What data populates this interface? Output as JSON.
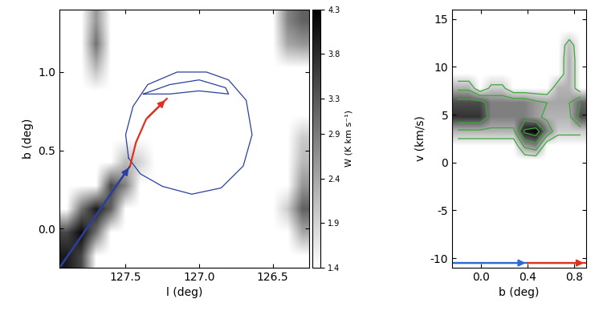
{
  "chart_data": [
    {
      "type": "heatmap",
      "xlabel": "l (deg)",
      "ylabel": "b (deg)",
      "xlim": [
        127.95,
        126.25
      ],
      "ylim": [
        -0.25,
        1.4
      ],
      "xticks": [
        127.5,
        127.0,
        126.5
      ],
      "yticks": [
        0.0,
        0.5,
        1.0
      ],
      "colorbar_label": "W (K km s⁻¹)",
      "colorbar_range": [
        1.4,
        4.3
      ],
      "colorbar_ticks": [
        1.4,
        1.9,
        2.4,
        2.9,
        3.3,
        3.8,
        4.3
      ],
      "cells": [
        [
          4.0,
          3.5,
          1.4,
          1.4,
          1.4,
          1.4,
          1.4,
          1.4,
          1.4,
          1.4,
          1.4,
          1.4,
          1.4,
          1.4,
          1.4,
          1.4,
          1.4
        ],
        [
          3.5,
          4.2,
          3.0,
          1.4,
          1.4,
          1.4,
          1.4,
          1.4,
          1.4,
          1.4,
          1.4,
          1.4,
          1.4,
          1.4,
          1.4,
          1.4,
          2.4
        ],
        [
          1.4,
          3.0,
          4.0,
          3.2,
          1.4,
          1.4,
          1.4,
          1.4,
          1.4,
          1.4,
          1.4,
          1.4,
          1.4,
          1.4,
          1.4,
          2.0,
          3.2
        ],
        [
          1.4,
          1.4,
          1.4,
          3.5,
          2.8,
          1.4,
          1.4,
          1.4,
          1.4,
          1.4,
          1.4,
          1.4,
          1.4,
          1.4,
          1.4,
          1.4,
          2.6
        ],
        [
          1.4,
          1.4,
          1.4,
          1.4,
          2.2,
          1.9,
          1.4,
          1.4,
          1.4,
          1.4,
          1.4,
          1.4,
          1.4,
          1.4,
          1.4,
          1.4,
          2.2
        ],
        [
          1.4,
          1.4,
          1.4,
          1.4,
          1.4,
          1.4,
          1.4,
          1.4,
          1.4,
          1.4,
          1.4,
          1.4,
          1.4,
          1.4,
          1.4,
          1.4,
          2.0
        ],
        [
          1.4,
          1.4,
          1.4,
          1.4,
          1.4,
          1.4,
          1.4,
          1.4,
          1.4,
          1.4,
          1.4,
          1.4,
          1.4,
          1.4,
          1.4,
          1.4,
          1.4
        ],
        [
          1.4,
          1.4,
          1.4,
          1.4,
          1.4,
          1.4,
          1.4,
          1.4,
          1.4,
          1.4,
          1.4,
          1.4,
          1.4,
          1.4,
          1.4,
          1.4,
          1.4
        ],
        [
          1.4,
          1.4,
          2.2,
          1.4,
          1.4,
          1.4,
          1.4,
          1.4,
          1.4,
          1.4,
          1.4,
          1.4,
          1.4,
          1.4,
          1.4,
          1.4,
          1.4
        ],
        [
          1.4,
          1.4,
          3.0,
          1.4,
          1.4,
          1.4,
          1.4,
          1.4,
          1.4,
          1.4,
          1.4,
          1.4,
          1.4,
          1.4,
          1.4,
          2.4,
          2.6
        ],
        [
          1.4,
          1.4,
          2.6,
          1.4,
          1.4,
          1.4,
          1.4,
          1.4,
          1.4,
          1.4,
          1.4,
          1.4,
          1.4,
          1.4,
          1.4,
          2.8,
          3.2
        ]
      ],
      "contours": [
        {
          "color": "#2b3f9e",
          "points": [
            [
              127.48,
              0.45
            ],
            [
              127.5,
              0.6
            ],
            [
              127.45,
              0.78
            ],
            [
              127.35,
              0.92
            ],
            [
              127.15,
              1.0
            ],
            [
              126.95,
              1.0
            ],
            [
              126.8,
              0.95
            ],
            [
              126.68,
              0.82
            ],
            [
              126.64,
              0.6
            ],
            [
              126.7,
              0.4
            ],
            [
              126.85,
              0.26
            ],
            [
              127.05,
              0.22
            ],
            [
              127.25,
              0.27
            ],
            [
              127.4,
              0.35
            ],
            [
              127.48,
              0.45
            ]
          ]
        },
        {
          "color": "#2b3f9e",
          "points": [
            [
              127.38,
              0.86
            ],
            [
              127.2,
              0.92
            ],
            [
              127.0,
              0.95
            ],
            [
              126.82,
              0.9
            ],
            [
              126.8,
              0.86
            ],
            [
              127.0,
              0.88
            ],
            [
              127.2,
              0.86
            ],
            [
              127.38,
              0.86
            ]
          ]
        }
      ],
      "arrows": [
        {
          "color": "#2b3f9e",
          "points": [
            [
              127.95,
              -0.25
            ],
            [
              127.47,
              0.4
            ]
          ]
        },
        {
          "color": "#e0301e",
          "points": [
            [
              127.47,
              0.4
            ],
            [
              127.43,
              0.55
            ],
            [
              127.36,
              0.7
            ],
            [
              127.22,
              0.83
            ]
          ]
        }
      ]
    },
    {
      "type": "heatmap",
      "xlabel": "b (deg)",
      "ylabel": "v (km/s)",
      "xlim": [
        -0.25,
        0.9
      ],
      "ylim": [
        -11,
        16
      ],
      "xticks": [
        0.0,
        0.4,
        0.8
      ],
      "yticks": [
        -10,
        -5,
        0,
        5,
        10,
        15
      ],
      "contour_levels": [
        0.15,
        0.35,
        0.6,
        0.85
      ],
      "contour_color": "#3aa83a",
      "cells": [
        [
          0,
          0,
          0,
          0,
          0,
          0,
          0,
          0,
          0,
          0,
          0,
          0
        ],
        [
          0,
          0,
          0,
          0,
          0,
          0,
          0,
          0,
          0,
          0,
          0,
          0
        ],
        [
          0,
          0,
          0,
          0,
          0,
          0,
          0,
          0,
          0,
          0,
          0,
          0
        ],
        [
          0,
          0,
          0,
          0,
          0,
          0,
          0,
          0,
          0,
          0,
          0,
          0
        ],
        [
          0,
          0,
          0,
          0,
          0,
          0,
          0,
          0,
          0,
          0,
          0,
          0
        ],
        [
          0,
          0,
          0,
          0,
          0,
          0,
          0,
          0,
          0,
          0,
          0,
          0
        ],
        [
          0,
          0,
          0,
          0,
          0,
          0,
          0,
          0,
          0,
          0,
          0,
          0
        ],
        [
          0,
          0,
          0,
          0,
          0,
          0,
          0,
          0,
          0,
          0,
          0,
          0
        ],
        [
          0,
          0,
          0,
          0,
          0,
          0,
          0.4,
          0.5,
          0,
          0,
          0,
          0
        ],
        [
          0.3,
          0.3,
          0.3,
          0.3,
          0.3,
          0.3,
          0.9,
          1.0,
          0.5,
          0.2,
          0.2,
          0.2
        ],
        [
          0.8,
          0.8,
          0.8,
          0.5,
          0.5,
          0.5,
          0.5,
          0.4,
          0.3,
          0.3,
          0.3,
          0.7
        ],
        [
          0.7,
          0.7,
          0.7,
          0.5,
          0.5,
          0.5,
          0.5,
          0.4,
          0.35,
          0.35,
          0.35,
          0.6
        ],
        [
          0.3,
          0.3,
          0,
          0.2,
          0.2,
          0,
          0,
          0,
          0,
          0.3,
          0.3,
          0
        ],
        [
          0,
          0,
          0,
          0,
          0,
          0,
          0,
          0,
          0,
          0,
          0.3,
          0
        ],
        [
          0,
          0,
          0,
          0,
          0,
          0,
          0,
          0,
          0,
          0,
          0.3,
          0
        ],
        [
          0,
          0,
          0,
          0,
          0,
          0,
          0,
          0,
          0,
          0,
          0.25,
          0
        ],
        [
          0,
          0,
          0,
          0,
          0,
          0,
          0,
          0,
          0,
          0,
          0,
          0
        ],
        [
          0,
          0,
          0,
          0,
          0,
          0,
          0,
          0,
          0,
          0,
          0,
          0
        ]
      ],
      "arrows": [
        {
          "color": "#2b6ad0",
          "points": [
            [
              -0.25,
              -10.5
            ],
            [
              0.4,
              -10.5
            ]
          ]
        },
        {
          "color": "#e0301e",
          "points": [
            [
              0.4,
              -10.5
            ],
            [
              0.9,
              -10.5
            ]
          ]
        }
      ]
    }
  ]
}
